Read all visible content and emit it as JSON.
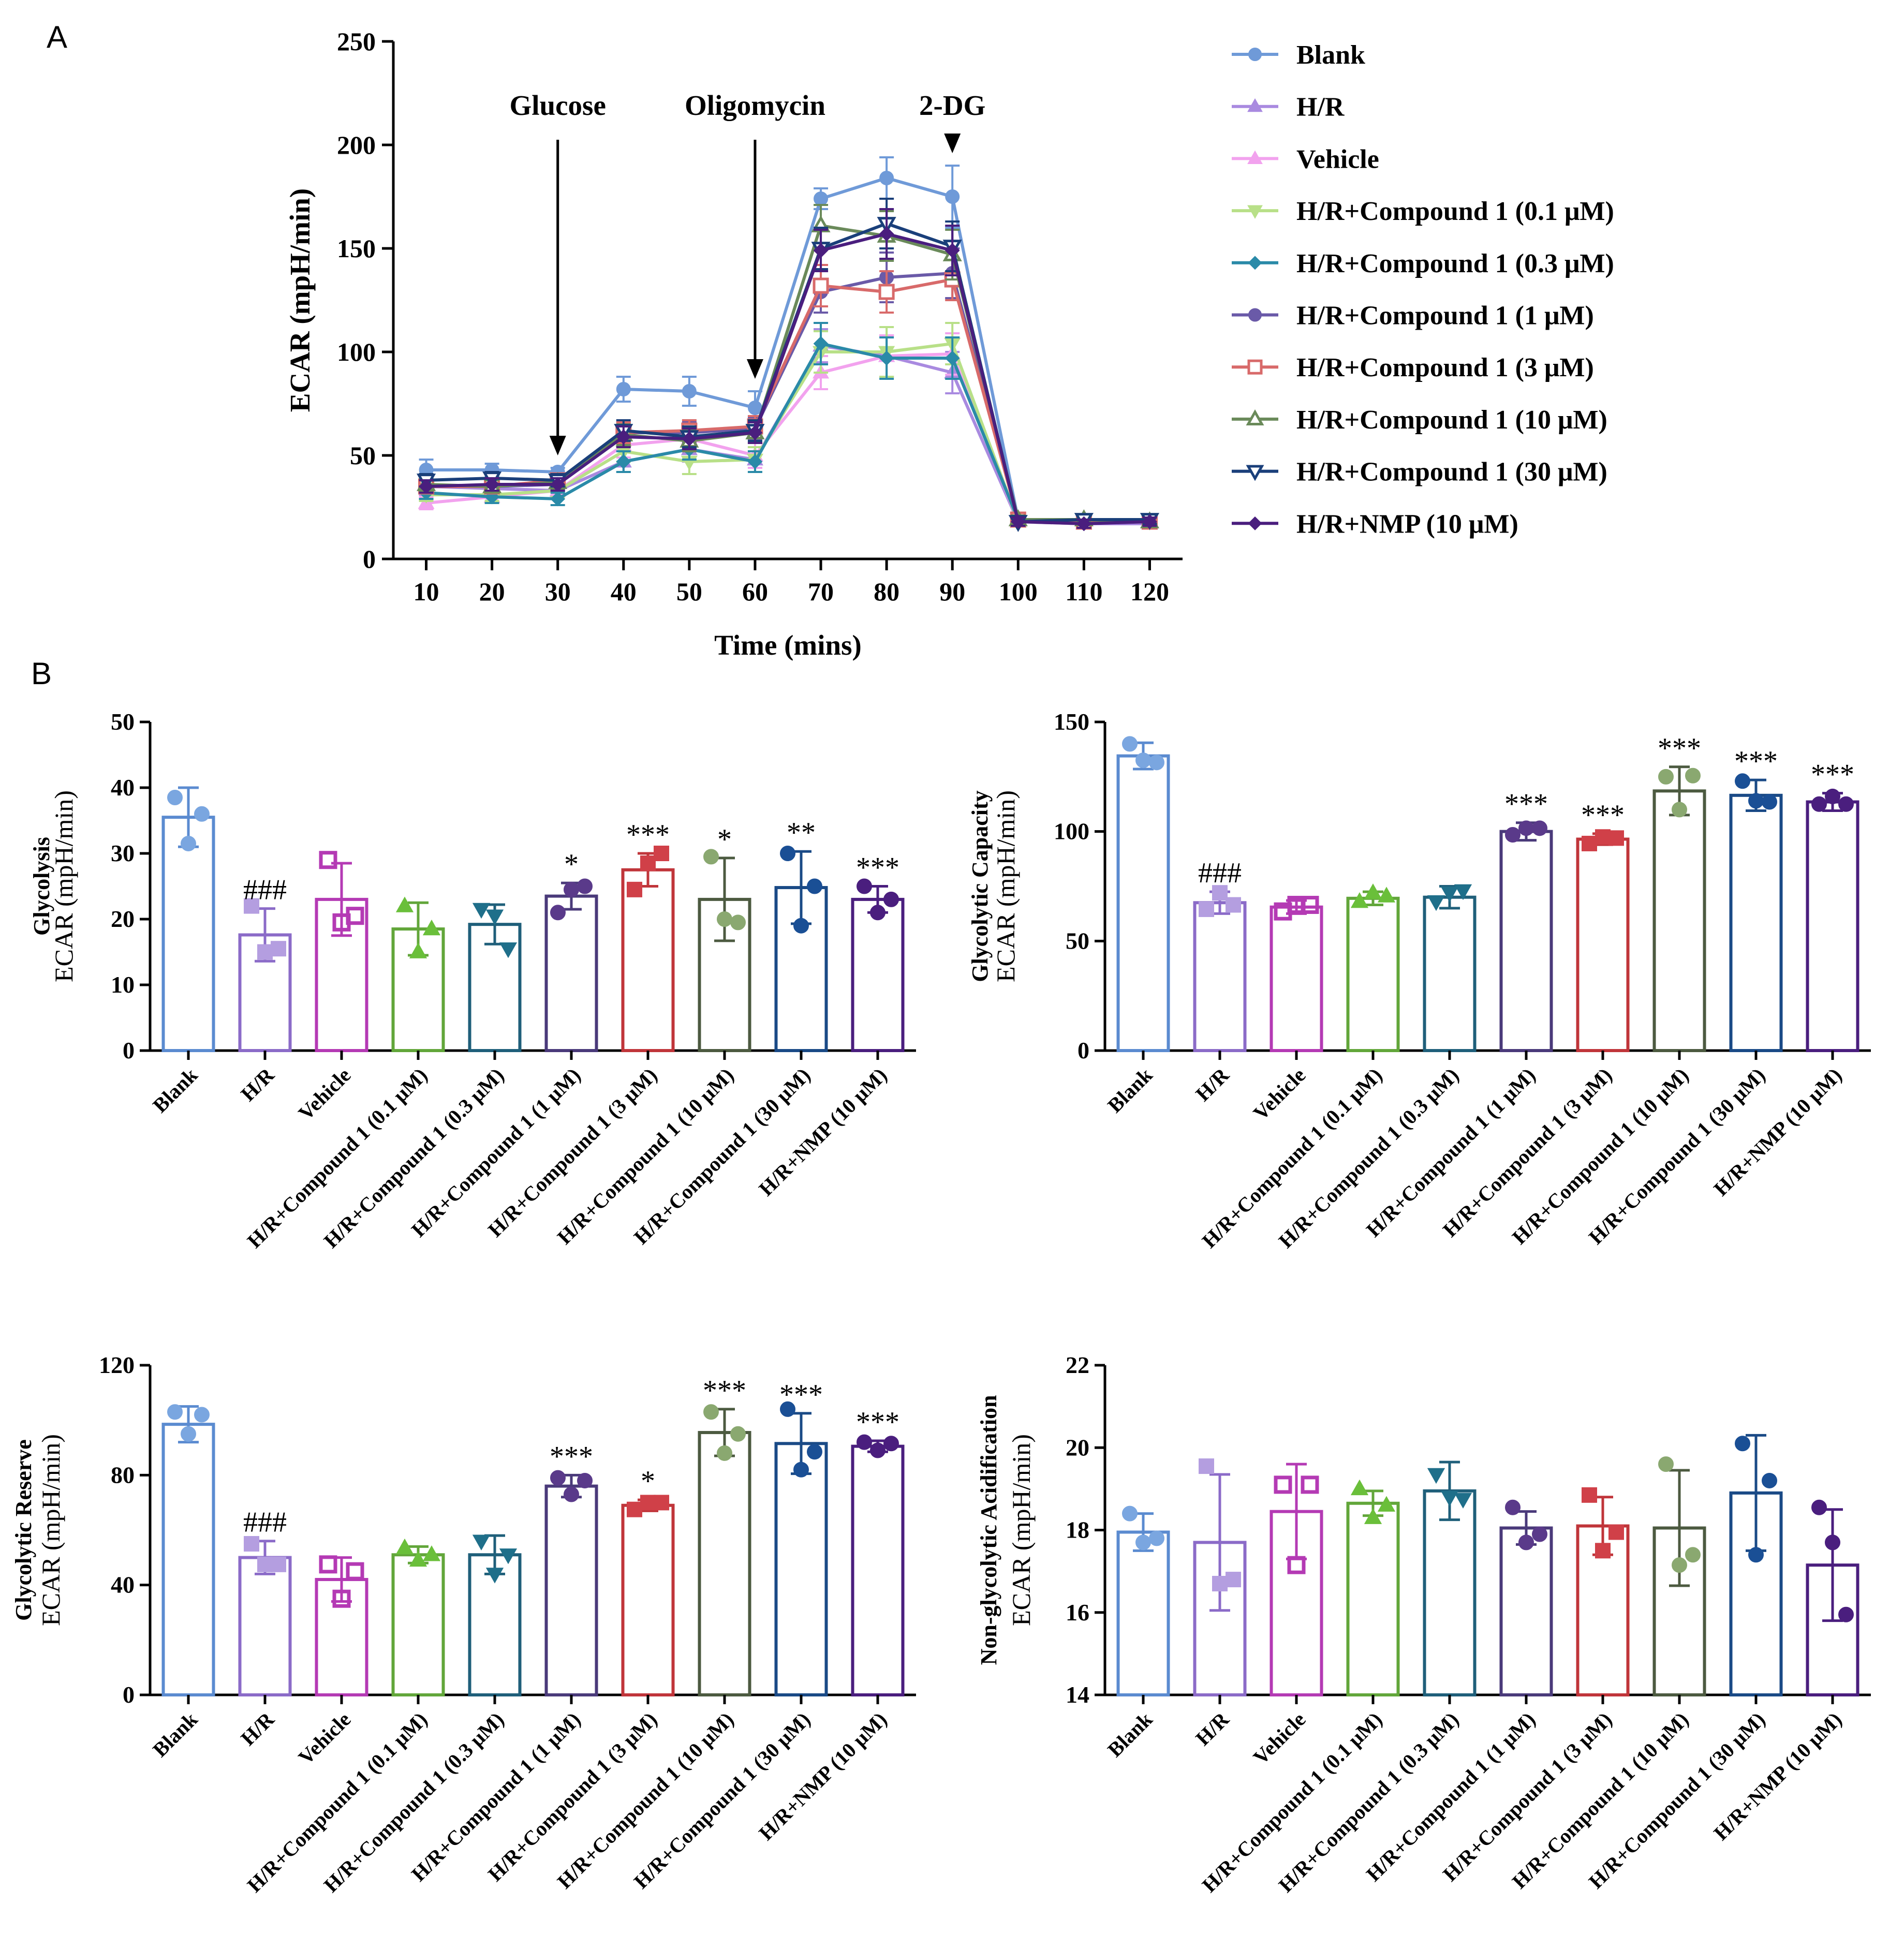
{
  "panels": {
    "a": "A",
    "b": "B"
  },
  "colors": {
    "Blank": "#5b8bd0",
    "H/R": "#8b6bc8",
    "Vehicle": "#b43ab4",
    "C01": "#62a63a",
    "C03": "#1f5f7a",
    "C1": "#4a3a7a",
    "C3": "#c0353a",
    "C10": "#4c5a40",
    "C30": "#1a4a86",
    "NMP": "#4a1e7e",
    "marker_Blank": "#7aa6e0",
    "marker_H/R": "#b49ee0",
    "marker_Vehicle": "#b43ab4",
    "marker_C01": "#6abf3a",
    "marker_C03": "#1f6f8a",
    "marker_C1": "#5a3a8a",
    "marker_C3": "#d04048",
    "marker_C10": "#8aa870",
    "marker_C30": "#1a4f95",
    "marker_NMP": "#4a1e7e"
  },
  "chart_data": [
    {
      "id": "A",
      "type": "line",
      "xlabel": "Time (mins)",
      "ylabel": "ECAR (mpH/min)",
      "x": [
        10,
        20,
        30,
        40,
        50,
        60,
        70,
        80,
        90,
        100,
        110,
        120
      ],
      "xlim": [
        5,
        125
      ],
      "ylim": [
        0,
        250
      ],
      "yticks": [
        0,
        50,
        100,
        150,
        200,
        250
      ],
      "annotations": [
        {
          "text": "Glucose",
          "x": 30,
          "arrow_to_y": 50
        },
        {
          "text": "Oligomycin",
          "x": 60,
          "arrow_to_y": 87
        },
        {
          "text": "2-DG",
          "x": 90,
          "arrow_to_y": 196
        }
      ],
      "series": [
        {
          "name": "Blank",
          "legend": "Blank",
          "key": "Blank",
          "line": "#6f9ad8",
          "marker": "circle",
          "filled": true,
          "values": [
            43,
            43,
            42,
            82,
            81,
            73,
            174,
            184,
            175,
            19,
            18,
            18
          ],
          "errors": [
            5,
            3,
            2,
            6,
            7,
            8,
            5,
            10,
            15,
            2,
            2,
            2
          ]
        },
        {
          "name": "H/R",
          "legend": "H/R",
          "key": "H/R",
          "line": "#a98ae0",
          "marker": "triangle-up",
          "filled": true,
          "values": [
            35,
            34,
            33,
            47,
            53,
            48,
            103,
            98,
            90,
            18,
            17,
            17
          ],
          "errors": [
            4,
            3,
            3,
            5,
            6,
            6,
            8,
            10,
            10,
            2,
            2,
            2
          ]
        },
        {
          "name": "Vehicle",
          "legend": "Vehicle",
          "key": "Vehicle",
          "line": "#f2a2ee",
          "marker": "triangle-up",
          "filled": true,
          "values": [
            27,
            30,
            33,
            55,
            58,
            50,
            90,
            98,
            99,
            18,
            17,
            18
          ],
          "errors": [
            3,
            3,
            3,
            6,
            6,
            6,
            8,
            10,
            10,
            2,
            2,
            2
          ]
        },
        {
          "name": "H/R+Compound 1 (0.1 μM)",
          "legend": "H/R+Compound 1 (0.1 μM)",
          "key": "C01",
          "line": "#b8e088",
          "marker": "triangle-down",
          "filled": true,
          "values": [
            31,
            31,
            33,
            52,
            47,
            48,
            100,
            100,
            104,
            18,
            18,
            18
          ],
          "errors": [
            3,
            3,
            3,
            5,
            6,
            6,
            10,
            12,
            10,
            2,
            2,
            2
          ]
        },
        {
          "name": "H/R+Compound 1 (0.3 μM)",
          "legend": "H/R+Compound 1 (0.3 μM)",
          "key": "C03",
          "line": "#2a8aa8",
          "marker": "diamond",
          "filled": true,
          "values": [
            32,
            30,
            29,
            47,
            53,
            47,
            104,
            97,
            97,
            19,
            18,
            18
          ],
          "errors": [
            3,
            3,
            3,
            5,
            5,
            5,
            10,
            10,
            10,
            2,
            2,
            2
          ]
        },
        {
          "name": "H/R+Compound 1 (1 μM)",
          "legend": "H/R+Compound 1 (1 μM)",
          "key": "C1",
          "line": "#6a5aa8",
          "marker": "circle",
          "filled": true,
          "values": [
            35,
            35,
            36,
            61,
            61,
            63,
            129,
            136,
            138,
            19,
            18,
            18
          ],
          "errors": [
            3,
            3,
            3,
            5,
            5,
            5,
            10,
            12,
            12,
            2,
            2,
            2
          ]
        },
        {
          "name": "H/R+Compound 1 (3 μM)",
          "legend": "H/R+Compound 1 (3 μM)",
          "key": "C3",
          "line": "#d86a6a",
          "marker": "square",
          "filled": false,
          "values": [
            35,
            35,
            38,
            61,
            62,
            64,
            132,
            129,
            135,
            19,
            18,
            18
          ],
          "errors": [
            3,
            3,
            3,
            5,
            5,
            5,
            10,
            10,
            10,
            2,
            2,
            2
          ]
        },
        {
          "name": "H/R+Compound 1 (10 μM)",
          "legend": "H/R+Compound 1 (10 μM)",
          "key": "C10",
          "line": "#6a8a5a",
          "marker": "triangle-up",
          "filled": false,
          "values": [
            36,
            35,
            37,
            60,
            57,
            61,
            161,
            156,
            147,
            19,
            19,
            18
          ],
          "errors": [
            3,
            3,
            3,
            5,
            5,
            5,
            10,
            12,
            12,
            2,
            2,
            2
          ]
        },
        {
          "name": "H/R+Compound 1 (30 μM)",
          "legend": "H/R+Compound 1 (30 μM)",
          "key": "C30",
          "line": "#1a3f7a",
          "marker": "triangle-down",
          "filled": false,
          "values": [
            38,
            39,
            38,
            62,
            59,
            62,
            150,
            162,
            151,
            18,
            19,
            19
          ],
          "errors": [
            3,
            3,
            3,
            5,
            5,
            5,
            10,
            12,
            12,
            2,
            2,
            2
          ]
        },
        {
          "name": "H/R+NMP (10 μM)",
          "legend": "H/R+NMP (10 μM)",
          "key": "NMP",
          "line": "#4a1e7e",
          "marker": "diamond",
          "filled": true,
          "values": [
            35,
            36,
            36,
            59,
            58,
            61,
            149,
            157,
            149,
            18,
            17,
            18
          ],
          "errors": [
            3,
            3,
            3,
            5,
            5,
            5,
            10,
            12,
            12,
            2,
            2,
            2
          ]
        }
      ]
    },
    {
      "id": "B1",
      "type": "bar",
      "ylabel_line1": "Glycolysis",
      "ylabel_line2": "ECAR (mpH/min)",
      "ylim": [
        0,
        50
      ],
      "yticks": [
        0,
        10,
        20,
        30,
        40,
        50
      ],
      "categories": [
        "Blank",
        "H/R",
        "Vehicle",
        "H/R+Compound 1 (0.1 μM)",
        "H/R+Compound 1 (0.3 μM)",
        "H/R+Compound 1 (1 μM)",
        "H/R+Compound 1 (3 μM)",
        "H/R+Compound 1 (10 μM)",
        "H/R+Compound 1 (30 μM)",
        "H/R+NMP (10 μM)"
      ],
      "keys": [
        "Blank",
        "H/R",
        "Vehicle",
        "C01",
        "C03",
        "C1",
        "C3",
        "C10",
        "C30",
        "NMP"
      ],
      "markers": [
        "circle",
        "square",
        "square-open",
        "triangle-up",
        "triangle-down",
        "circle",
        "square",
        "circle",
        "circle",
        "circle"
      ],
      "values": [
        35.5,
        17.6,
        23.0,
        18.5,
        19.2,
        23.5,
        27.5,
        23.0,
        24.8,
        23.0
      ],
      "errors": [
        4.5,
        4.0,
        5.5,
        4.0,
        3.0,
        2.0,
        2.5,
        6.3,
        5.5,
        2.0
      ],
      "points": [
        [
          38.5,
          31.5,
          36.0
        ],
        [
          22.0,
          15.0,
          15.5
        ],
        [
          29.0,
          19.5,
          20.5
        ],
        [
          22.0,
          15.0,
          18.5
        ],
        [
          21.5,
          20.5,
          15.5
        ],
        [
          21.0,
          24.5,
          25.0
        ],
        [
          24.5,
          28.5,
          30.0
        ],
        [
          29.5,
          20.0,
          19.5
        ],
        [
          30.0,
          19.0,
          25.0
        ],
        [
          25.0,
          21.0,
          23.0
        ]
      ],
      "annotations": [
        "",
        "###",
        "",
        "",
        "",
        "*",
        "***",
        "*",
        "**",
        "***"
      ]
    },
    {
      "id": "B2",
      "type": "bar",
      "ylabel_line1": "Glycolytic Capacity",
      "ylabel_line2": "ECAR (mpH/min)",
      "ylim": [
        0,
        150
      ],
      "yticks": [
        0,
        50,
        100,
        150
      ],
      "categories": [
        "Blank",
        "H/R",
        "Vehicle",
        "H/R+Compound 1 (0.1 μM)",
        "H/R+Compound 1 (0.3 μM)",
        "H/R+Compound 1 (1 μM)",
        "H/R+Compound 1 (3 μM)",
        "H/R+Compound 1 (10 μM)",
        "H/R+Compound 1 (30 μM)",
        "H/R+NMP (10 μM)"
      ],
      "keys": [
        "Blank",
        "H/R",
        "Vehicle",
        "C01",
        "C03",
        "C1",
        "C3",
        "C10",
        "C30",
        "NMP"
      ],
      "markers": [
        "circle",
        "square",
        "square-open",
        "triangle-up",
        "triangle-down",
        "circle",
        "square",
        "circle",
        "circle",
        "circle"
      ],
      "values": [
        134.5,
        67.5,
        65.5,
        69.5,
        70.0,
        100.0,
        96.5,
        118.5,
        116.5,
        113.5
      ],
      "errors": [
        6.0,
        5.0,
        3.0,
        3.0,
        5.0,
        4.0,
        2.5,
        11.0,
        7.0,
        4.0
      ],
      "points": [
        [
          140.0,
          132.5,
          131.5
        ],
        [
          64.5,
          72.0,
          66.5
        ],
        [
          63.5,
          66.5,
          66.5
        ],
        [
          68.0,
          72.0,
          70.5
        ],
        [
          68.0,
          72.0,
          73.0
        ],
        [
          98.5,
          101.5,
          101.5
        ],
        [
          94.5,
          97.5,
          97.0
        ],
        [
          125.0,
          110.0,
          125.5
        ],
        [
          123.0,
          114.0,
          113.5
        ],
        [
          112.5,
          116.0,
          112.5
        ]
      ],
      "annotations": [
        "",
        "###",
        "",
        "",
        "",
        "***",
        "***",
        "***",
        "***",
        "***"
      ]
    },
    {
      "id": "B3",
      "type": "bar",
      "ylabel_line1": "Glycolytic Reserve",
      "ylabel_line2": "ECAR (mpH/min)",
      "ylim": [
        0,
        120
      ],
      "yticks": [
        0,
        40,
        80,
        120
      ],
      "categories": [
        "Blank",
        "H/R",
        "Vehicle",
        "H/R+Compound 1 (0.1 μM)",
        "H/R+Compound 1 (0.3 μM)",
        "H/R+Compound 1 (1 μM)",
        "H/R+Compound 1 (3 μM)",
        "H/R+Compound 1 (10 μM)",
        "H/R+Compound 1 (30 μM)",
        "H/R+NMP (10 μM)"
      ],
      "keys": [
        "Blank",
        "H/R",
        "Vehicle",
        "C01",
        "C03",
        "C1",
        "C3",
        "C10",
        "C30",
        "NMP"
      ],
      "markers": [
        "circle",
        "square",
        "square-open",
        "triangle-up",
        "triangle-down",
        "circle",
        "square",
        "circle",
        "circle",
        "circle"
      ],
      "values": [
        98.5,
        50.0,
        42.0,
        51.0,
        51.0,
        76.0,
        69.0,
        95.5,
        91.5,
        90.5
      ],
      "errors": [
        6.5,
        6.0,
        8.0,
        3.0,
        7.0,
        4.0,
        2.0,
        8.5,
        11.0,
        2.0
      ],
      "points": [
        [
          103.0,
          95.0,
          102.0
        ],
        [
          55.0,
          47.5,
          47.5
        ],
        [
          47.5,
          35.0,
          45.0
        ],
        [
          53.5,
          49.0,
          51.0
        ],
        [
          56.0,
          44.0,
          51.0
        ],
        [
          79.0,
          73.0,
          78.0
        ],
        [
          67.5,
          70.0,
          70.0
        ],
        [
          103.0,
          88.0,
          95.0
        ],
        [
          104.0,
          82.0,
          88.5
        ],
        [
          92.0,
          89.0,
          91.5
        ]
      ],
      "annotations": [
        "",
        "###",
        "",
        "",
        "",
        "***",
        "*",
        "***",
        "***",
        "***"
      ]
    },
    {
      "id": "B4",
      "type": "bar",
      "ylabel_line1": "Non-glycolytic Acidification",
      "ylabel_line2": "ECAR (mpH/min)",
      "ylim": [
        14,
        22
      ],
      "yticks": [
        14,
        16,
        18,
        20,
        22
      ],
      "categories": [
        "Blank",
        "H/R",
        "Vehicle",
        "H/R+Compound 1 (0.1 μM)",
        "H/R+Compound 1 (0.3 μM)",
        "H/R+Compound 1 (1 μM)",
        "H/R+Compound 1 (3 μM)",
        "H/R+Compound 1 (10 μM)",
        "H/R+Compound 1 (30 μM)",
        "H/R+NMP (10 μM)"
      ],
      "keys": [
        "Blank",
        "H/R",
        "Vehicle",
        "C01",
        "C03",
        "C1",
        "C3",
        "C10",
        "C30",
        "NMP"
      ],
      "markers": [
        "circle",
        "square",
        "square-open",
        "triangle-up",
        "triangle-down",
        "circle",
        "square",
        "circle",
        "circle",
        "circle"
      ],
      "values": [
        17.95,
        17.7,
        18.45,
        18.65,
        18.95,
        18.05,
        18.1,
        18.05,
        18.9,
        17.15
      ],
      "errors": [
        0.45,
        1.65,
        1.15,
        0.3,
        0.7,
        0.4,
        0.7,
        1.4,
        1.4,
        1.35
      ],
      "points": [
        [
          18.4,
          17.7,
          17.8
        ],
        [
          19.55,
          16.7,
          16.8
        ],
        [
          19.1,
          17.15,
          19.1
        ],
        [
          19.0,
          18.3,
          18.6
        ],
        [
          19.35,
          18.8,
          18.75
        ],
        [
          18.55,
          17.7,
          17.9
        ],
        [
          18.85,
          17.5,
          17.95
        ],
        [
          19.6,
          17.15,
          17.4
        ],
        [
          20.1,
          17.4,
          19.2
        ],
        [
          18.55,
          17.7,
          15.95
        ]
      ],
      "annotations": [
        "",
        "",
        "",
        "",
        "",
        "",
        "",
        "",
        "",
        ""
      ]
    }
  ]
}
